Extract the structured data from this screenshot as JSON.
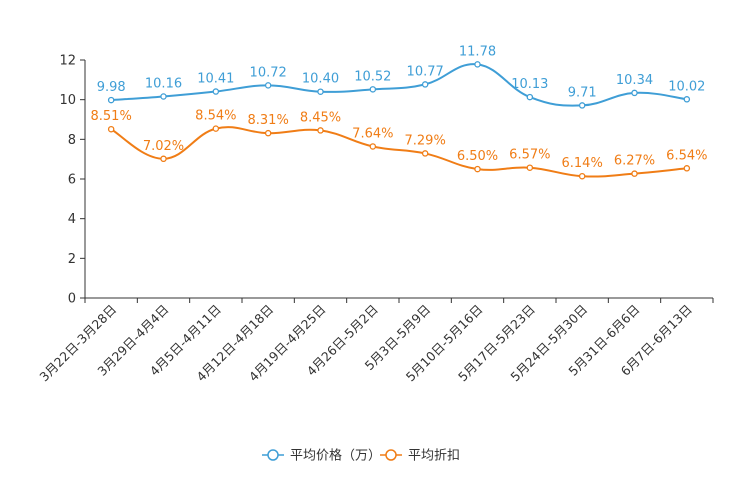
{
  "colors": {
    "price": "#3f9ed6",
    "discount": "#f07d16",
    "axis": "#333333"
  },
  "chart_data": {
    "type": "line",
    "title": "",
    "xlabel": "",
    "ylabel": "",
    "ylim": [
      0,
      12
    ],
    "yticks": [
      0,
      2,
      4,
      6,
      8,
      10,
      12
    ],
    "grid": false,
    "legend_position": "bottom-center",
    "categories": [
      "3月22日-3月28日",
      "3月29日-4月4日",
      "4月5日-4月11日",
      "4月12日-4月18日",
      "4月19日-4月25日",
      "4月26日-5月2日",
      "5月3日-5月9日",
      "5月10日-5月16日",
      "5月17日-5月23日",
      "5月24日-5月30日",
      "5月31日-6月6日",
      "6月7日-6月13日"
    ],
    "series": [
      {
        "name": "平均价格（万）",
        "color": "#3f9ed6",
        "values": [
          9.98,
          10.16,
          10.41,
          10.72,
          10.4,
          10.52,
          10.77,
          11.78,
          10.13,
          9.71,
          10.34,
          10.02
        ],
        "labels": [
          "9.98",
          "10.16",
          "10.41",
          "10.72",
          "10.40",
          "10.52",
          "10.77",
          "11.78",
          "10.13",
          "9.71",
          "10.34",
          "10.02"
        ]
      },
      {
        "name": "平均折扣",
        "color": "#f07d16",
        "values": [
          8.51,
          7.02,
          8.54,
          8.31,
          8.45,
          7.64,
          7.29,
          6.5,
          6.57,
          6.14,
          6.27,
          6.54
        ],
        "labels": [
          "8.51%",
          "7.02%",
          "8.54%",
          "8.31%",
          "8.45%",
          "7.64%",
          "7.29%",
          "6.50%",
          "6.57%",
          "6.14%",
          "6.27%",
          "6.54%"
        ]
      }
    ]
  }
}
